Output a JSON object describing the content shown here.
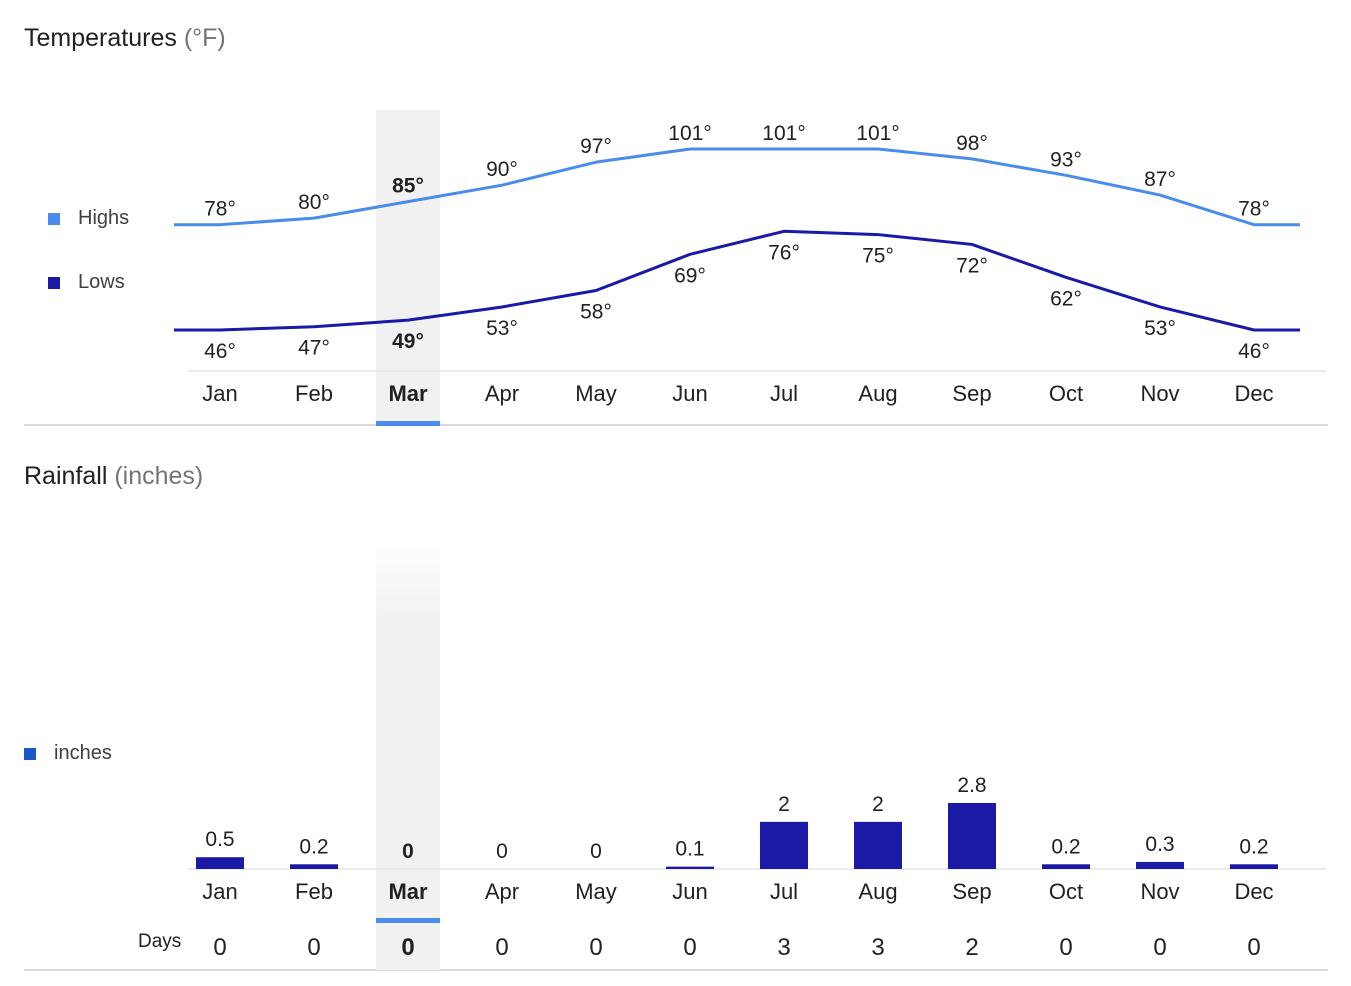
{
  "colors": {
    "highs": "#4a8cec",
    "lows": "#1a1aa6",
    "rain": "#1a1aa6",
    "rain_legend": "#1a57c7",
    "selected_bg": "#f1f1f1",
    "selected_bar": "#4a8cec",
    "axis_line": "#e6e6e6"
  },
  "temperatures": {
    "title": "Temperatures",
    "unit": "(°F)",
    "legend": {
      "highs": "Highs",
      "lows": "Lows"
    }
  },
  "rainfall": {
    "title": "Rainfall",
    "unit": "(inches)",
    "legend": "inches",
    "days_label": "Days"
  },
  "selected_month_index": 2,
  "chart_data": [
    {
      "type": "line",
      "title": "Temperatures (°F)",
      "categories": [
        "Jan",
        "Feb",
        "Mar",
        "Apr",
        "May",
        "Jun",
        "Jul",
        "Aug",
        "Sep",
        "Oct",
        "Nov",
        "Dec"
      ],
      "series": [
        {
          "name": "Highs",
          "values": [
            78,
            80,
            85,
            90,
            97,
            101,
            101,
            101,
            98,
            93,
            87,
            78
          ]
        },
        {
          "name": "Lows",
          "values": [
            46,
            47,
            49,
            53,
            58,
            69,
            76,
            75,
            72,
            62,
            53,
            46
          ]
        }
      ],
      "labels": {
        "Highs": [
          "78°",
          "80°",
          "85°",
          "90°",
          "97°",
          "101°",
          "101°",
          "101°",
          "98°",
          "93°",
          "87°",
          "78°"
        ],
        "Lows": [
          "46°",
          "47°",
          "49°",
          "53°",
          "58°",
          "69°",
          "76°",
          "75°",
          "72°",
          "62°",
          "53°",
          "46°"
        ]
      },
      "legend_position": "left",
      "grid": false
    },
    {
      "type": "bar",
      "title": "Rainfall (inches)",
      "categories": [
        "Jan",
        "Feb",
        "Mar",
        "Apr",
        "May",
        "Jun",
        "Jul",
        "Aug",
        "Sep",
        "Oct",
        "Nov",
        "Dec"
      ],
      "series": [
        {
          "name": "inches",
          "values": [
            0.5,
            0.2,
            0,
            0,
            0,
            0.1,
            2,
            2,
            2.8,
            0.2,
            0.3,
            0.2
          ]
        }
      ],
      "value_labels": [
        "0.5",
        "0.2",
        "0",
        "0",
        "0",
        "0.1",
        "2",
        "2",
        "2.8",
        "0.2",
        "0.3",
        "0.2"
      ],
      "days": [
        0,
        0,
        0,
        0,
        0,
        0,
        3,
        3,
        2,
        0,
        0,
        0
      ],
      "legend_position": "left",
      "grid": false
    }
  ]
}
